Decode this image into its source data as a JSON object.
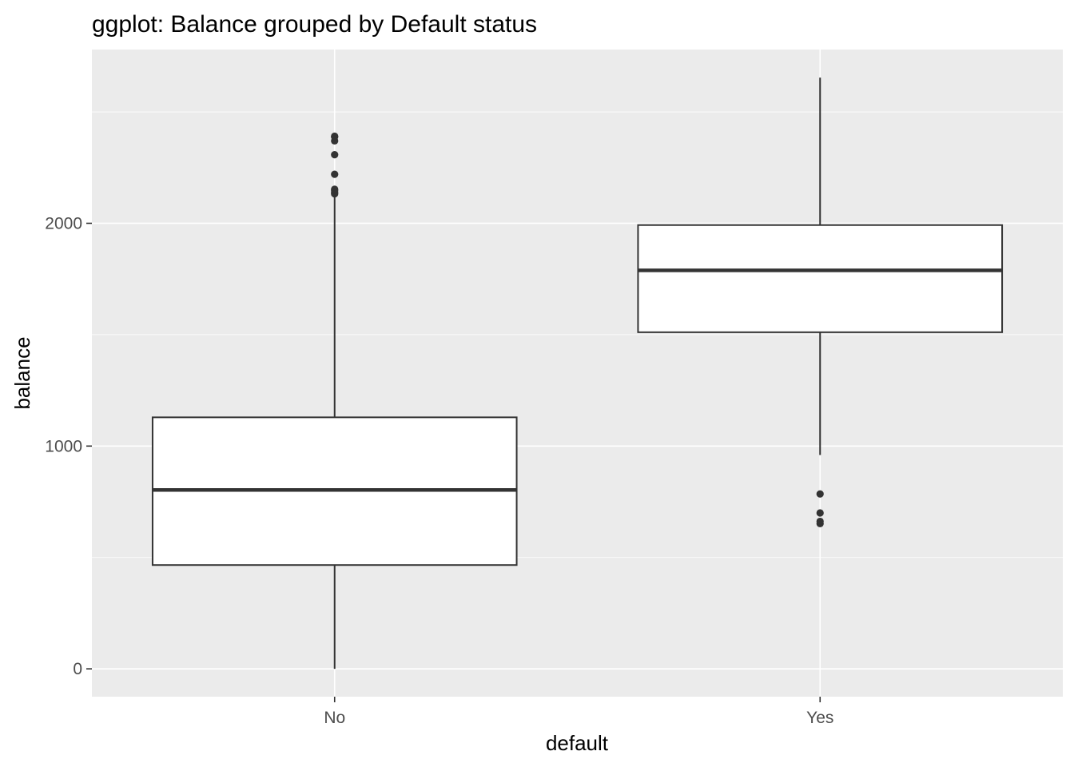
{
  "chart_data": {
    "type": "boxplot",
    "title": "ggplot: Balance grouped by Default status",
    "xlabel": "default",
    "ylabel": "balance",
    "categories": [
      "No",
      "Yes"
    ],
    "y_ticks": [
      0,
      1000,
      2000
    ],
    "y_tick_labels": [
      "0",
      "1000",
      "2000"
    ],
    "ylim": [
      -125,
      2780
    ],
    "grid": true,
    "legend": "none",
    "boxes": [
      {
        "category": "No",
        "whisker_low": 0,
        "q1": 466,
        "median": 803,
        "q3": 1129,
        "whisker_high": 2127,
        "outliers": [
          2132,
          2139,
          2148,
          2153,
          2220,
          2308,
          2370,
          2388,
          2391
        ]
      },
      {
        "category": "Yes",
        "whisker_low": 960,
        "q1": 1511,
        "median": 1789,
        "q3": 1992,
        "whisker_high": 2654,
        "outliers": [
          652,
          662,
          700,
          785
        ]
      }
    ],
    "colors": {
      "panel_background": "#ebebeb",
      "grid_major": "#ffffff",
      "box_fill": "#ffffff",
      "box_line": "#333333",
      "tick_label": "#4d4d4d",
      "tick_mark": "#333333"
    }
  }
}
